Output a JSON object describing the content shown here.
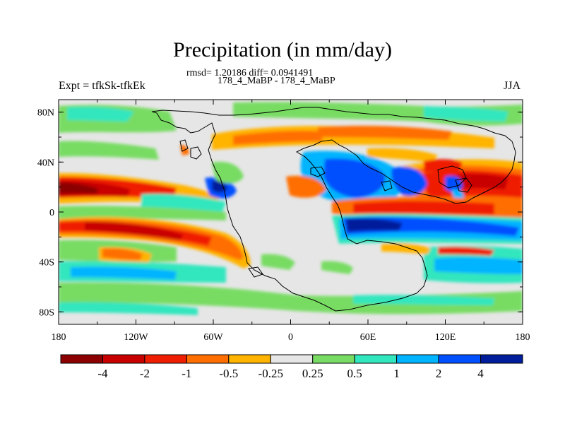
{
  "header": {
    "title": "Precipitation (in mm/day)",
    "stats": "rmsd= 1.20186 diff= 0.0941491",
    "period": "178_4_MaBP - 178_4_MaBP",
    "experiment": "Expt = tfkSk-tfkEk",
    "season": "JJA"
  },
  "axes": {
    "lat_ticks": [
      "80N",
      "40N",
      "0",
      "40S",
      "80S"
    ],
    "lat_values": [
      80,
      40,
      0,
      -40,
      -80
    ],
    "lon_ticks": [
      "180",
      "120W",
      "60W",
      "0",
      "60E",
      "120E",
      "180"
    ],
    "lon_values": [
      -180,
      -120,
      -60,
      0,
      60,
      120,
      180
    ]
  },
  "colorbar": {
    "colors": [
      "#8c0000",
      "#c80000",
      "#f01e00",
      "#ff6e00",
      "#ffb400",
      "#e6e6e6",
      "#78dc64",
      "#32e6be",
      "#00b4ff",
      "#0050ff",
      "#001e9b"
    ],
    "labels": [
      "-4",
      "-2",
      "-1",
      "-0.5",
      "-0.25",
      "0.25",
      "0.5",
      "1",
      "2",
      "4"
    ]
  },
  "map": {
    "type": "contour-fill",
    "lat_range": [
      -90,
      90
    ],
    "lon_range": [
      -180,
      180
    ]
  }
}
